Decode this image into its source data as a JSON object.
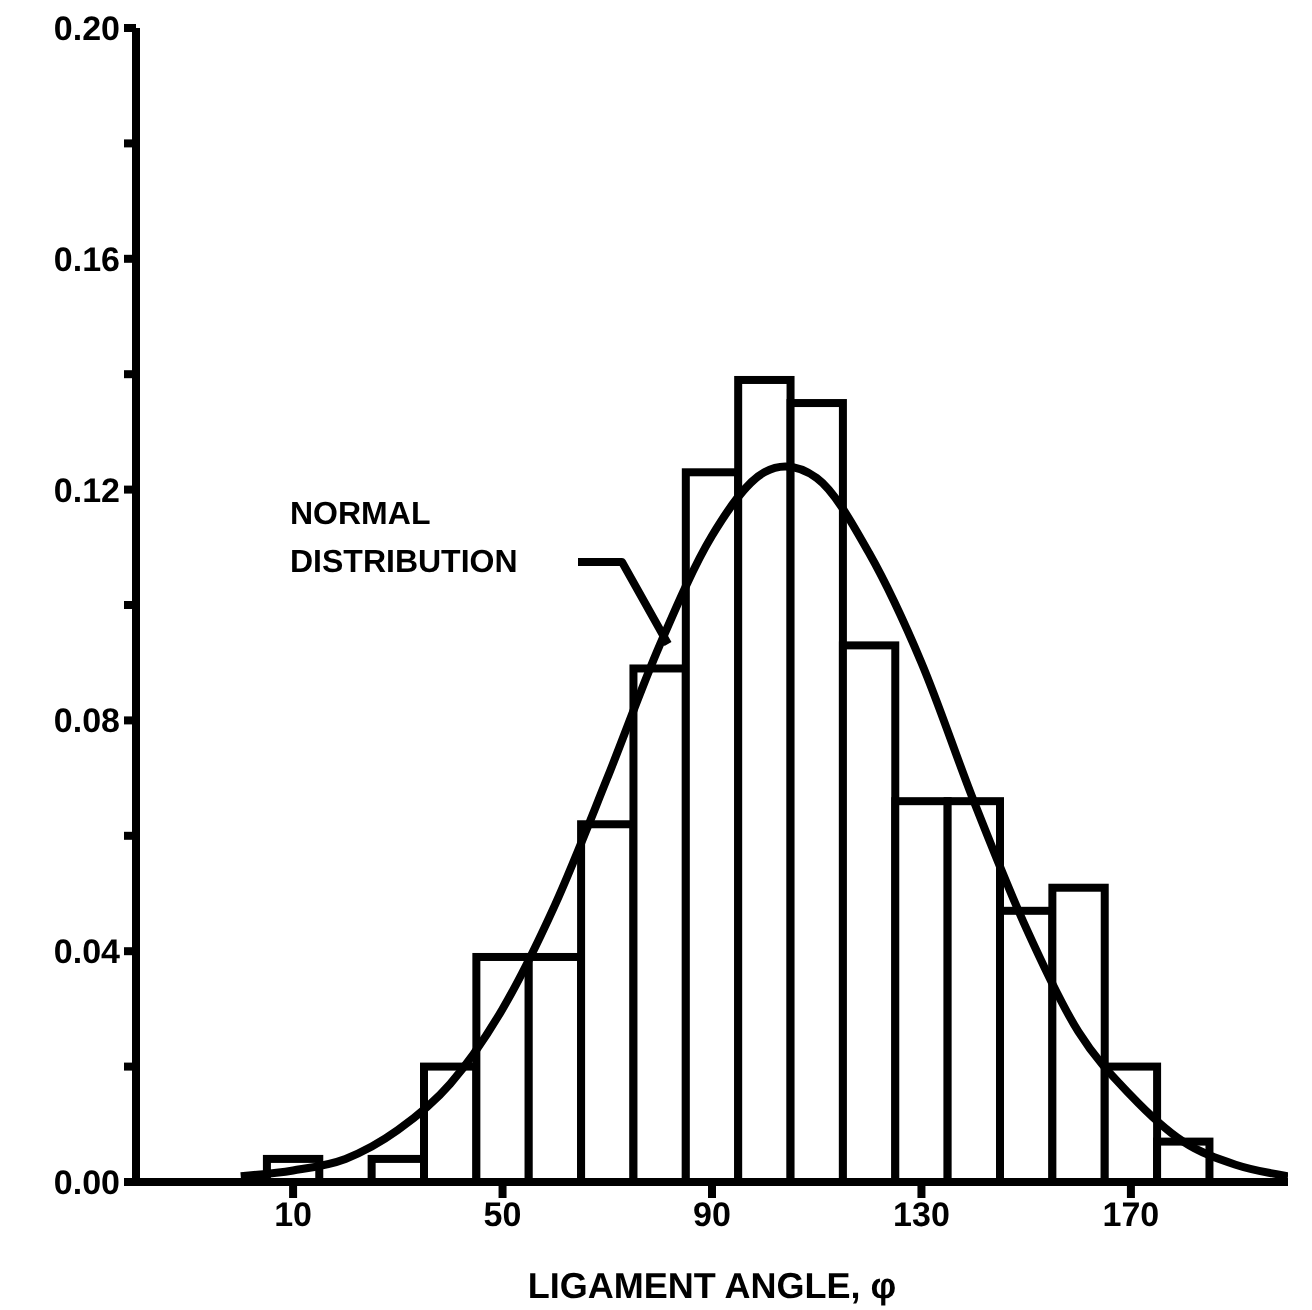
{
  "chart_data": {
    "type": "histogram",
    "xlabel": "LIGAMENT ANGLE, φ",
    "bins": [
      5,
      15,
      25,
      35,
      45,
      55,
      65,
      75,
      85,
      95,
      105,
      115,
      125,
      135,
      145,
      155,
      165,
      175,
      185
    ],
    "values": [
      0.004,
      0,
      0.004,
      0.02,
      0.039,
      0.039,
      0.062,
      0.089,
      0.123,
      0.139,
      0.135,
      0.093,
      0.066,
      0.066,
      0.047,
      0.051,
      0.02,
      0.007
    ],
    "color": "#000000",
    "series": [
      {
        "type": "line",
        "color": "#000000",
        "x": [
          0,
          10,
          20,
          30,
          40,
          50,
          60,
          70,
          80,
          90,
          100,
          104,
          110,
          120,
          130,
          140,
          150,
          160,
          170,
          180,
          190,
          200
        ],
        "values": [
          0.001,
          0.002,
          0.004,
          0.009,
          0.017,
          0.03,
          0.048,
          0.07,
          0.093,
          0.112,
          0.123,
          0.124,
          0.122,
          0.109,
          0.09,
          0.066,
          0.044,
          0.026,
          0.015,
          0.007,
          0.003,
          0.001
        ]
      }
    ],
    "annotations": [
      "NORMAL DISTRIBUTION"
    ],
    "xlim": [
      -20,
      200
    ],
    "xticks": [
      10,
      50,
      90,
      130,
      170
    ],
    "ylim": [
      0,
      0.2
    ],
    "yticks": [
      {
        "value": 0,
        "label": "0.00"
      },
      {
        "value": 0.02,
        "label": null
      },
      {
        "value": 0.04,
        "label": "0.04"
      },
      {
        "value": 0.06,
        "label": null
      },
      {
        "value": 0.08,
        "label": "0.08"
      },
      {
        "value": 0.1,
        "label": null
      },
      {
        "value": 0.12,
        "label": "0.12"
      },
      {
        "value": 0.14,
        "label": null
      },
      {
        "value": 0.16,
        "label": "0.16"
      },
      {
        "value": 0.18,
        "label": null
      },
      {
        "value": 0.2,
        "label": "0.20"
      }
    ],
    "grid": false,
    "legend": false,
    "marker": "none",
    "line_style": "solid"
  }
}
